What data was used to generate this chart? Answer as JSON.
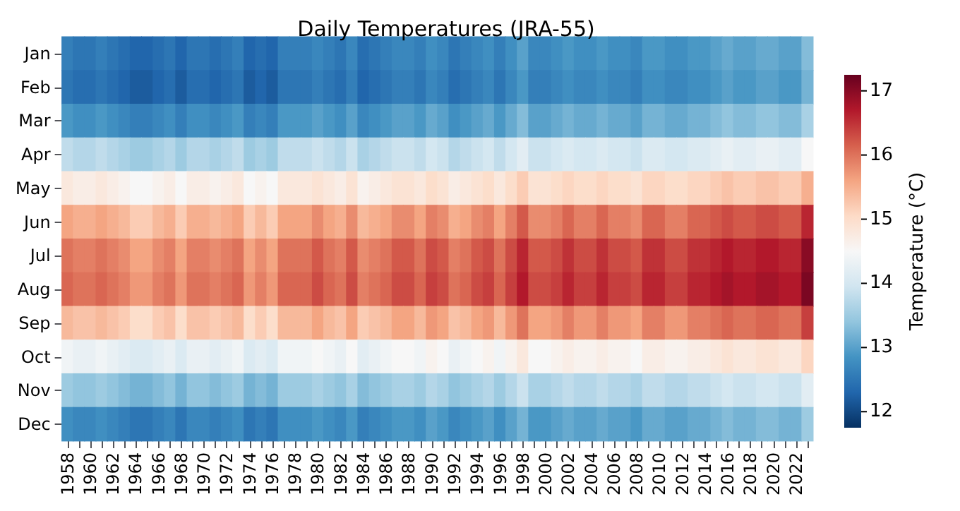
{
  "chart_data": {
    "type": "heatmap",
    "title": "Daily Temperatures (JRA-55)",
    "clabel": "Temperature (°C)",
    "categories": [
      "1958",
      null,
      "1960",
      null,
      "1962",
      null,
      "1964",
      null,
      "1966",
      null,
      "1968",
      null,
      "1970",
      null,
      "1972",
      null,
      "1974",
      null,
      "1976",
      null,
      "1978",
      null,
      "1980",
      null,
      "1982",
      null,
      "1984",
      null,
      "1986",
      null,
      "1988",
      null,
      "1990",
      null,
      "1992",
      null,
      "1994",
      null,
      "1996",
      null,
      "1998",
      null,
      "2000",
      null,
      "2002",
      null,
      "2004",
      null,
      "2006",
      null,
      "2008",
      null,
      "2010",
      null,
      "2012",
      null,
      "2014",
      null,
      "2016",
      null,
      "2018",
      null,
      "2020",
      null,
      "2022",
      null
    ],
    "y_categories": [
      "Jan",
      "Feb",
      "Mar",
      "Apr",
      "May",
      "Jun",
      "Jul",
      "Aug",
      "Sep",
      "Oct",
      "Nov",
      "Dec"
    ],
    "clim": [
      11.75,
      17.25
    ],
    "cticks": [
      12,
      13,
      14,
      15,
      16,
      17
    ],
    "cells": [
      [
        12.6,
        12.5,
        12.5,
        12.6,
        12.5,
        12.4,
        12.3,
        12.3,
        12.4,
        12.5,
        12.3,
        12.5,
        12.5,
        12.4,
        12.5,
        12.6,
        12.3,
        12.4,
        12.3,
        12.6,
        12.6,
        12.6,
        12.7,
        12.6,
        12.5,
        12.7,
        12.4,
        12.5,
        12.6,
        12.7,
        12.7,
        12.6,
        12.8,
        12.7,
        12.5,
        12.6,
        12.7,
        12.8,
        12.6,
        12.8,
        13.0,
        12.7,
        12.7,
        12.8,
        12.9,
        12.8,
        12.8,
        12.9,
        12.8,
        12.8,
        12.7,
        12.9,
        12.9,
        12.8,
        12.8,
        12.9,
        12.9,
        13.0,
        13.1,
        13.0,
        13.0,
        13.1,
        13.1,
        13.0,
        13.0,
        13.3
      ],
      [
        12.5,
        12.4,
        12.4,
        12.5,
        12.4,
        12.3,
        12.2,
        12.2,
        12.3,
        12.4,
        12.2,
        12.4,
        12.4,
        12.3,
        12.4,
        12.5,
        12.2,
        12.3,
        12.2,
        12.5,
        12.5,
        12.5,
        12.6,
        12.5,
        12.4,
        12.6,
        12.3,
        12.4,
        12.5,
        12.6,
        12.6,
        12.5,
        12.7,
        12.6,
        12.4,
        12.5,
        12.6,
        12.7,
        12.5,
        12.7,
        12.9,
        12.6,
        12.6,
        12.7,
        12.8,
        12.7,
        12.7,
        12.8,
        12.7,
        12.7,
        12.6,
        12.8,
        12.8,
        12.7,
        12.7,
        12.8,
        12.8,
        12.9,
        13.0,
        12.9,
        12.9,
        13.0,
        13.0,
        12.9,
        12.9,
        13.2
      ],
      [
        12.9,
        12.8,
        12.8,
        12.9,
        12.8,
        12.7,
        12.6,
        12.6,
        12.7,
        12.8,
        12.6,
        12.8,
        12.8,
        12.7,
        12.8,
        12.9,
        12.6,
        12.7,
        12.6,
        12.9,
        12.9,
        12.9,
        13.0,
        12.9,
        12.8,
        13.0,
        12.7,
        12.8,
        12.9,
        13.0,
        13.0,
        12.9,
        13.1,
        13.0,
        12.8,
        12.9,
        13.0,
        13.1,
        12.9,
        13.1,
        13.3,
        13.0,
        13.0,
        13.1,
        13.2,
        13.1,
        13.1,
        13.2,
        13.1,
        13.1,
        13.0,
        13.2,
        13.2,
        13.1,
        13.1,
        13.2,
        13.2,
        13.3,
        13.4,
        13.3,
        13.3,
        13.4,
        13.4,
        13.3,
        13.3,
        13.6
      ],
      [
        13.8,
        13.7,
        13.7,
        13.8,
        13.7,
        13.6,
        13.5,
        13.5,
        13.6,
        13.7,
        13.5,
        13.7,
        13.7,
        13.6,
        13.7,
        13.8,
        13.5,
        13.6,
        13.5,
        13.8,
        13.8,
        13.8,
        13.9,
        13.8,
        13.7,
        13.9,
        13.6,
        13.7,
        13.8,
        13.9,
        13.9,
        13.8,
        14.0,
        13.9,
        13.7,
        13.8,
        13.9,
        14.0,
        13.8,
        14.0,
        14.2,
        13.9,
        13.9,
        14.0,
        14.1,
        14.0,
        14.0,
        14.1,
        14.0,
        14.0,
        13.9,
        14.1,
        14.1,
        14.0,
        14.0,
        14.1,
        14.1,
        14.2,
        14.3,
        14.2,
        14.2,
        14.3,
        14.3,
        14.2,
        14.2,
        14.5
      ],
      [
        14.8,
        14.7,
        14.7,
        14.8,
        14.7,
        14.6,
        14.5,
        14.5,
        14.6,
        14.7,
        14.5,
        14.7,
        14.7,
        14.6,
        14.7,
        14.8,
        14.5,
        14.6,
        14.5,
        14.8,
        14.8,
        14.8,
        14.9,
        14.8,
        14.7,
        14.9,
        14.6,
        14.7,
        14.8,
        14.9,
        14.9,
        14.8,
        15.0,
        14.9,
        14.7,
        14.8,
        14.9,
        15.0,
        14.8,
        15.0,
        15.2,
        14.9,
        14.9,
        15.0,
        15.1,
        15.0,
        15.0,
        15.1,
        15.0,
        15.0,
        14.9,
        15.1,
        15.1,
        15.0,
        15.0,
        15.1,
        15.1,
        15.2,
        15.3,
        15.2,
        15.2,
        15.3,
        15.3,
        15.2,
        15.2,
        15.5
      ],
      [
        15.6,
        15.5,
        15.5,
        15.6,
        15.5,
        15.4,
        15.2,
        15.2,
        15.4,
        15.5,
        15.2,
        15.5,
        15.5,
        15.4,
        15.5,
        15.6,
        15.2,
        15.4,
        15.2,
        15.6,
        15.6,
        15.6,
        15.8,
        15.6,
        15.5,
        15.8,
        15.4,
        15.5,
        15.6,
        15.8,
        15.8,
        15.6,
        15.9,
        15.8,
        15.5,
        15.6,
        15.8,
        15.9,
        15.6,
        15.9,
        16.2,
        15.8,
        15.8,
        15.9,
        16.1,
        15.9,
        15.9,
        16.1,
        15.9,
        15.9,
        15.8,
        16.1,
        16.1,
        15.9,
        15.9,
        16.1,
        16.1,
        16.2,
        16.3,
        16.2,
        16.2,
        16.3,
        16.3,
        16.2,
        16.2,
        16.6
      ],
      [
        16.0,
        15.9,
        15.9,
        16.0,
        15.9,
        15.8,
        15.6,
        15.6,
        15.8,
        15.9,
        15.6,
        15.9,
        15.9,
        15.8,
        15.9,
        16.0,
        15.6,
        15.8,
        15.6,
        16.0,
        16.0,
        16.0,
        16.2,
        16.0,
        15.9,
        16.2,
        15.8,
        15.9,
        16.0,
        16.2,
        16.2,
        16.0,
        16.3,
        16.2,
        15.9,
        16.0,
        16.2,
        16.3,
        16.0,
        16.3,
        16.6,
        16.2,
        16.2,
        16.3,
        16.5,
        16.3,
        16.3,
        16.5,
        16.3,
        16.3,
        16.2,
        16.5,
        16.5,
        16.3,
        16.3,
        16.5,
        16.5,
        16.6,
        16.7,
        16.6,
        16.6,
        16.7,
        16.7,
        16.6,
        16.6,
        17.0
      ],
      [
        16.1,
        16.0,
        16.0,
        16.1,
        16.0,
        15.9,
        15.7,
        15.7,
        15.9,
        16.0,
        15.7,
        16.0,
        16.0,
        15.9,
        16.0,
        16.1,
        15.7,
        15.9,
        15.7,
        16.1,
        16.1,
        16.1,
        16.3,
        16.1,
        16.0,
        16.3,
        15.9,
        16.0,
        16.1,
        16.3,
        16.3,
        16.1,
        16.4,
        16.3,
        16.0,
        16.1,
        16.3,
        16.4,
        16.1,
        16.4,
        16.7,
        16.3,
        16.3,
        16.4,
        16.6,
        16.4,
        16.4,
        16.6,
        16.4,
        16.4,
        16.3,
        16.6,
        16.6,
        16.4,
        16.4,
        16.6,
        16.6,
        16.7,
        16.8,
        16.7,
        16.7,
        16.8,
        16.8,
        16.7,
        16.7,
        17.1
      ],
      [
        15.4,
        15.3,
        15.3,
        15.4,
        15.3,
        15.2,
        15.0,
        15.0,
        15.2,
        15.3,
        15.0,
        15.3,
        15.3,
        15.2,
        15.3,
        15.4,
        15.0,
        15.2,
        15.0,
        15.4,
        15.4,
        15.4,
        15.6,
        15.4,
        15.3,
        15.6,
        15.2,
        15.3,
        15.4,
        15.6,
        15.6,
        15.4,
        15.7,
        15.6,
        15.3,
        15.4,
        15.6,
        15.7,
        15.4,
        15.7,
        16.0,
        15.6,
        15.6,
        15.7,
        15.9,
        15.7,
        15.7,
        15.9,
        15.7,
        15.7,
        15.6,
        15.9,
        15.9,
        15.7,
        15.7,
        15.9,
        15.9,
        16.0,
        16.1,
        16.0,
        16.0,
        16.1,
        16.1,
        16.0,
        16.0,
        16.4
      ],
      [
        14.4,
        14.3,
        14.3,
        14.4,
        14.3,
        14.2,
        14.1,
        14.1,
        14.2,
        14.3,
        14.1,
        14.3,
        14.3,
        14.2,
        14.3,
        14.4,
        14.1,
        14.2,
        14.1,
        14.4,
        14.4,
        14.4,
        14.5,
        14.4,
        14.3,
        14.5,
        14.2,
        14.3,
        14.4,
        14.5,
        14.5,
        14.4,
        14.6,
        14.5,
        14.3,
        14.4,
        14.5,
        14.6,
        14.4,
        14.6,
        14.8,
        14.5,
        14.5,
        14.6,
        14.7,
        14.6,
        14.6,
        14.7,
        14.6,
        14.6,
        14.5,
        14.7,
        14.7,
        14.6,
        14.6,
        14.7,
        14.7,
        14.8,
        14.9,
        14.8,
        14.8,
        14.9,
        14.9,
        14.8,
        14.8,
        15.1
      ],
      [
        13.5,
        13.4,
        13.4,
        13.5,
        13.4,
        13.3,
        13.2,
        13.2,
        13.3,
        13.4,
        13.2,
        13.4,
        13.4,
        13.3,
        13.4,
        13.5,
        13.2,
        13.3,
        13.2,
        13.5,
        13.5,
        13.5,
        13.6,
        13.5,
        13.4,
        13.6,
        13.3,
        13.4,
        13.5,
        13.6,
        13.6,
        13.5,
        13.7,
        13.6,
        13.4,
        13.5,
        13.6,
        13.7,
        13.5,
        13.7,
        13.9,
        13.6,
        13.6,
        13.7,
        13.8,
        13.7,
        13.7,
        13.8,
        13.7,
        13.7,
        13.6,
        13.8,
        13.8,
        13.7,
        13.7,
        13.8,
        13.8,
        13.9,
        14.0,
        13.9,
        13.9,
        14.0,
        14.0,
        13.9,
        13.9,
        14.2
      ],
      [
        12.8,
        12.7,
        12.7,
        12.8,
        12.7,
        12.6,
        12.5,
        12.5,
        12.6,
        12.7,
        12.5,
        12.7,
        12.7,
        12.6,
        12.7,
        12.8,
        12.5,
        12.6,
        12.5,
        12.8,
        12.8,
        12.8,
        12.9,
        12.8,
        12.7,
        12.9,
        12.6,
        12.7,
        12.8,
        12.9,
        12.9,
        12.8,
        13.0,
        12.9,
        12.7,
        12.8,
        12.9,
        13.0,
        12.8,
        13.0,
        13.2,
        12.9,
        12.9,
        13.0,
        13.1,
        13.0,
        13.0,
        13.1,
        13.0,
        13.0,
        12.9,
        13.1,
        13.1,
        13.0,
        13.0,
        13.1,
        13.1,
        13.2,
        13.3,
        13.2,
        13.2,
        13.3,
        13.3,
        13.2,
        13.2,
        13.5
      ]
    ]
  }
}
